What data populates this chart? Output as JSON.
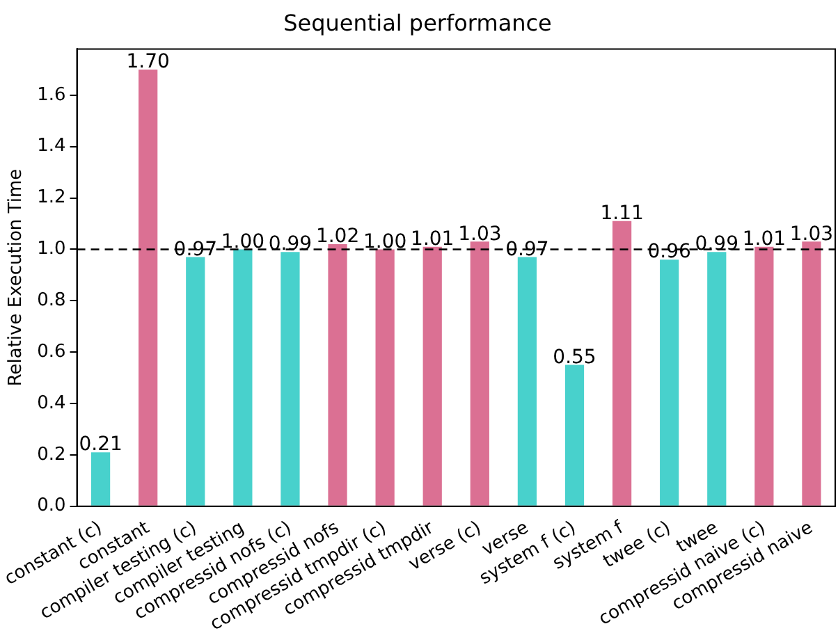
{
  "chart_data": {
    "type": "bar",
    "title": "Sequential performance",
    "ylabel": "Relative Execution Time",
    "categories": [
      "constant (c)",
      "constant",
      "compiler testing (c)",
      "compiler testing",
      "compressid nofs (c)",
      "compressid nofs",
      "compressid tmpdir (c)",
      "compressid tmpdir",
      "verse (c)",
      "verse",
      "system f (c)",
      "system f",
      "twee (c)",
      "twee",
      "compressid naive (c)",
      "compressid naive"
    ],
    "values": [
      0.21,
      1.7,
      0.97,
      1.0,
      0.99,
      1.02,
      1.0,
      1.01,
      1.03,
      0.97,
      0.55,
      1.11,
      0.96,
      0.99,
      1.01,
      1.03
    ],
    "value_labels": [
      "0.21",
      "1.70",
      "0.97",
      "1.00",
      "0.99",
      "1.02",
      "1.00",
      "1.01",
      "1.03",
      "0.97",
      "0.55",
      "1.11",
      "0.96",
      "0.99",
      "1.01",
      "1.03"
    ],
    "colors": [
      "#48d1cc",
      "#db7093",
      "#48d1cc",
      "#48d1cc",
      "#48d1cc",
      "#db7093",
      "#db7093",
      "#db7093",
      "#db7093",
      "#48d1cc",
      "#48d1cc",
      "#db7093",
      "#48d1cc",
      "#48d1cc",
      "#db7093",
      "#db7093"
    ],
    "ylim": [
      0,
      1.78
    ],
    "yticks": [
      {
        "value": 0,
        "label": "0.0"
      },
      0.2,
      0.4,
      0.6,
      0.8,
      {
        "value": 1,
        "label": "1.0"
      },
      1.2,
      1.4,
      1.6
    ],
    "ref_lines": [
      {
        "axis": "y",
        "value": 1.0,
        "color": "#000000",
        "line_style": "dashed"
      }
    ],
    "grid": false,
    "legend": false
  }
}
